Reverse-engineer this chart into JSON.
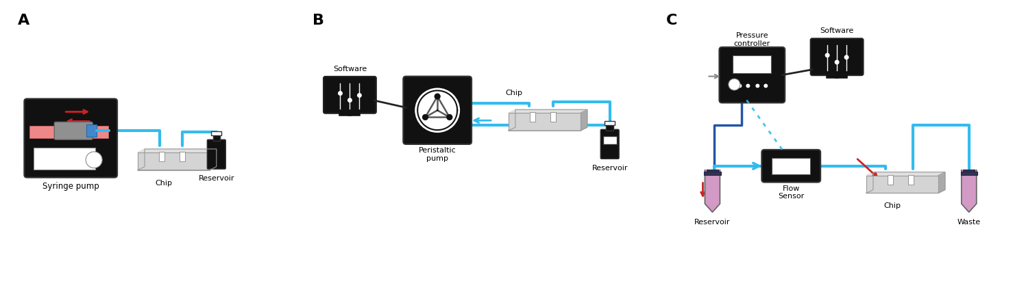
{
  "fig_width": 14.78,
  "fig_height": 4.11,
  "bg_color": "#ffffff",
  "label_A": "A",
  "label_B": "B",
  "label_C": "C",
  "cyan": "#33BBEE",
  "dark_blue": "#2255AA",
  "red": "#CC2222",
  "pink": "#DD99BB",
  "black": "#111111",
  "gray": "#888888",
  "light_gray": "#CCCCCC",
  "dark_gray": "#444444"
}
